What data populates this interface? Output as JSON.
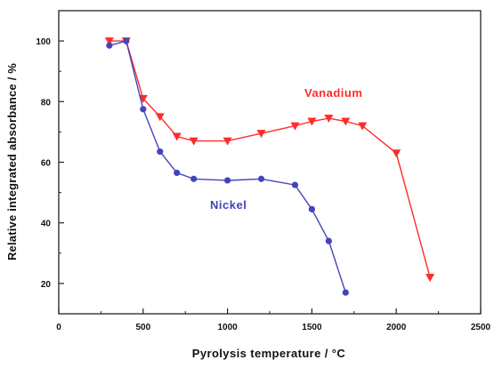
{
  "chart_data": {
    "type": "line",
    "xlabel": "Pyrolysis temperature / °C",
    "ylabel": "Relative integrated absorbance / %",
    "xlim": [
      0,
      2500
    ],
    "ylim": [
      10,
      110
    ],
    "x_ticks": [
      0,
      500,
      1000,
      1500,
      2000,
      2500
    ],
    "x_tick_labels": [
      "0",
      "500",
      "1000",
      "1500",
      "2000",
      "2500"
    ],
    "y_ticks": [
      20,
      40,
      60,
      80,
      100
    ],
    "y_tick_labels": [
      "20",
      "40",
      "60",
      "80",
      "100"
    ],
    "grid": false,
    "series": [
      {
        "name": "Vanadium",
        "color": "#ff2a2a",
        "marker": "triangle-down",
        "x": [
          300,
          400,
          500,
          600,
          700,
          800,
          1000,
          1200,
          1400,
          1500,
          1600,
          1700,
          1800,
          2000,
          2200
        ],
        "y": [
          100,
          100,
          81,
          75,
          68.5,
          67,
          67,
          69.5,
          72,
          73.5,
          74.5,
          73.5,
          72,
          63,
          22
        ]
      },
      {
        "name": "Nickel",
        "color": "#4444bb",
        "marker": "circle",
        "x": [
          300,
          400,
          500,
          600,
          700,
          800,
          1000,
          1200,
          1400,
          1500,
          1600,
          1700
        ],
        "y": [
          98.5,
          100,
          77.5,
          63.5,
          56.5,
          54.5,
          54,
          54.5,
          52.5,
          44.5,
          34,
          17
        ]
      }
    ]
  }
}
